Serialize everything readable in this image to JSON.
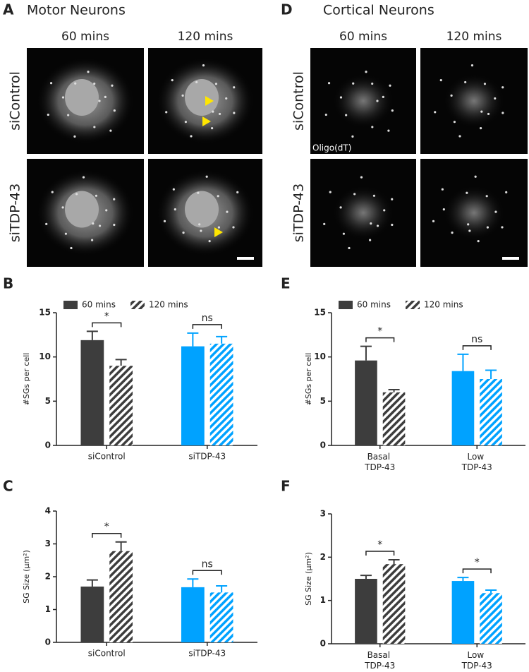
{
  "image_panels": [
    {
      "letter": "A",
      "title": "Motor Neurons",
      "columns": [
        "60 mins",
        "120 mins"
      ],
      "rows": [
        "siControl",
        "siTDP-43"
      ]
    },
    {
      "letter": "D",
      "title": "Cortical Neurons",
      "columns": [
        "60 mins",
        "120 mins"
      ],
      "rows": [
        "siControl",
        "siTDP-43"
      ],
      "stain": "Oligo(dT)"
    }
  ],
  "chart_data": [
    {
      "type": "bar",
      "panel": "B",
      "ylabel": "#SGs per cell",
      "categories": [
        "siControl",
        "siTDP-43"
      ],
      "category_colors": [
        "#3d3d3d",
        "#00a2ff"
      ],
      "series": [
        {
          "name": "60 mins",
          "hatch": false,
          "values": [
            11.9,
            11.2
          ],
          "errors": [
            1.0,
            1.5
          ]
        },
        {
          "name": "120 mins",
          "hatch": true,
          "values": [
            9.0,
            11.5
          ],
          "errors": [
            0.7,
            0.8
          ]
        }
      ],
      "ylim": [
        0,
        15
      ],
      "yticks": [
        0,
        5,
        10,
        15
      ],
      "legend": true,
      "annotations": [
        {
          "category": 0,
          "label": "*"
        },
        {
          "category": 1,
          "label": "ns"
        }
      ]
    },
    {
      "type": "bar",
      "panel": "C",
      "ylabel": "SG Size (μm²)",
      "categories": [
        "siControl",
        "siTDP-43"
      ],
      "category_colors": [
        "#3d3d3d",
        "#00a2ff"
      ],
      "series": [
        {
          "name": "60 mins",
          "hatch": false,
          "values": [
            1.7,
            1.68
          ],
          "errors": [
            0.2,
            0.25
          ]
        },
        {
          "name": "120 mins",
          "hatch": true,
          "values": [
            2.78,
            1.52
          ],
          "errors": [
            0.28,
            0.2
          ]
        }
      ],
      "ylim": [
        0,
        4
      ],
      "yticks": [
        0,
        1,
        2,
        3,
        4
      ],
      "legend": false,
      "annotations": [
        {
          "category": 0,
          "label": "*"
        },
        {
          "category": 1,
          "label": "ns"
        }
      ]
    },
    {
      "type": "bar",
      "panel": "E",
      "ylabel": "#SGs per cell",
      "categories": [
        "Basal TDP-43",
        "Low TDP-43"
      ],
      "category_colors": [
        "#3d3d3d",
        "#00a2ff"
      ],
      "series": [
        {
          "name": "60 mins",
          "hatch": false,
          "values": [
            9.6,
            8.4
          ],
          "errors": [
            1.6,
            1.9
          ]
        },
        {
          "name": "120 mins",
          "hatch": true,
          "values": [
            6.0,
            7.5
          ],
          "errors": [
            0.3,
            1.0
          ]
        }
      ],
      "ylim": [
        0,
        15
      ],
      "yticks": [
        0,
        5,
        10,
        15
      ],
      "legend": true,
      "annotations": [
        {
          "category": 0,
          "label": "*"
        },
        {
          "category": 1,
          "label": "ns"
        }
      ]
    },
    {
      "type": "bar",
      "panel": "F",
      "ylabel": "SG Size (μm²)",
      "categories": [
        "Basal TDP-43",
        "Low TDP-43"
      ],
      "category_colors": [
        "#3d3d3d",
        "#00a2ff"
      ],
      "series": [
        {
          "name": "60 mins",
          "hatch": false,
          "values": [
            1.5,
            1.45
          ],
          "errors": [
            0.08,
            0.08
          ]
        },
        {
          "name": "120 mins",
          "hatch": true,
          "values": [
            1.84,
            1.17
          ],
          "errors": [
            0.1,
            0.07
          ]
        }
      ],
      "ylim": [
        0,
        3
      ],
      "yticks": [
        0,
        1,
        2,
        3
      ],
      "legend": false,
      "annotations": [
        {
          "category": 0,
          "label": "*"
        },
        {
          "category": 1,
          "label": "*"
        }
      ]
    }
  ]
}
